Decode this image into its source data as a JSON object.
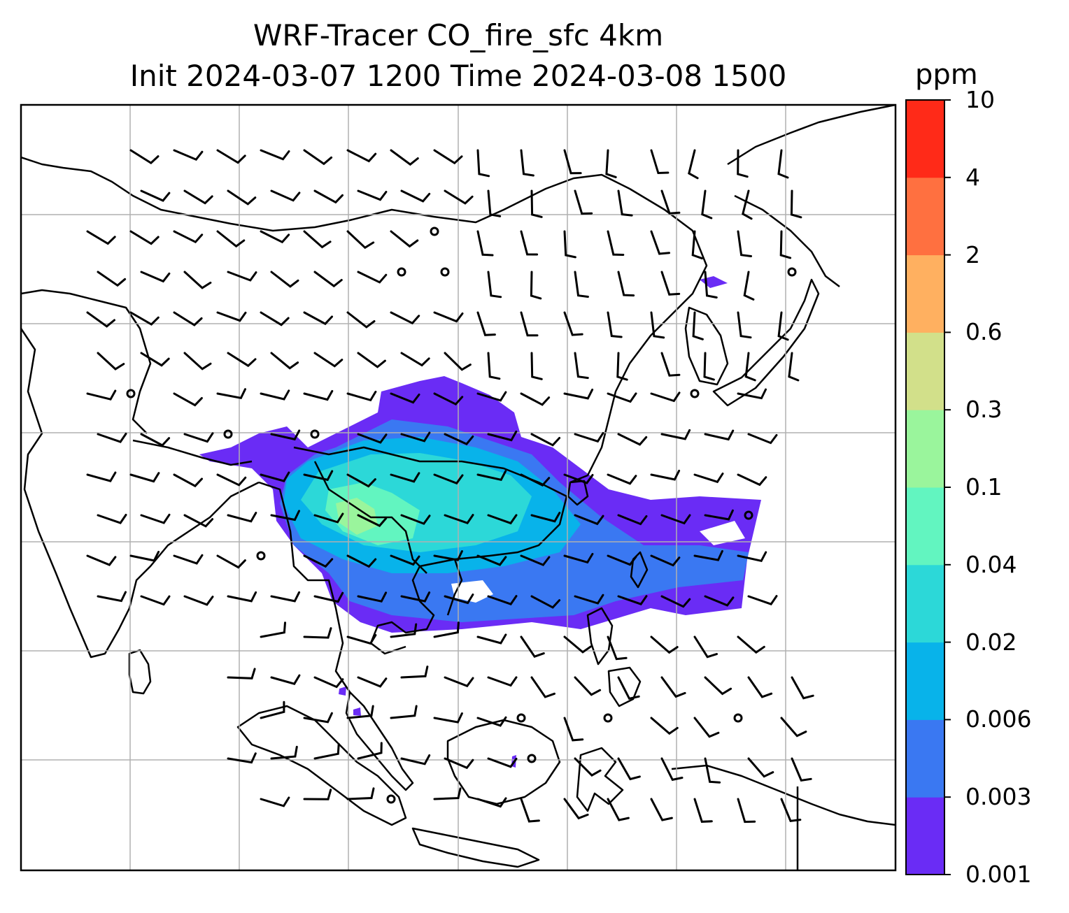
{
  "title": {
    "line1": "WRF-Tracer CO_fire_sfc 4km",
    "line2": "Init 2024-03-07 1200 Time 2024-03-08 1500"
  },
  "colorbar": {
    "unit": "ppm",
    "levels": [
      "0.001",
      "0.003",
      "0.006",
      "0.02",
      "0.04",
      "0.1",
      "0.3",
      "0.6",
      "2",
      "4",
      "10"
    ],
    "colors": [
      "#6a2cf5",
      "#3a78f2",
      "#08b3ea",
      "#2cd8d8",
      "#62f5c0",
      "#9af59c",
      "#d2e08a",
      "#ffb060",
      "#ff7040",
      "#ff2a18"
    ]
  },
  "map": {
    "gridlines": true,
    "grid_color": "#b0b0b0",
    "coastline_color": "#000000",
    "wind_barb_color": "#000000"
  }
}
